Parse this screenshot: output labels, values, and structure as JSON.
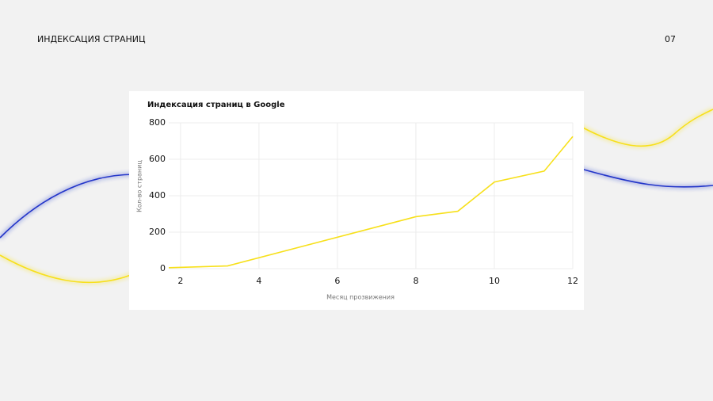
{
  "header": {
    "title": "ИНДЕКСАЦИЯ СТРАНИЦ",
    "page": "07"
  },
  "chart_data": {
    "type": "line",
    "title": "Индексация страниц в Google",
    "x_label": "Месяц прозвижения",
    "y_label": "Кол-во страниц",
    "x": [
      1.7,
      3.2,
      8,
      9.07,
      10,
      11.27,
      12
    ],
    "values": [
      5,
      15,
      285,
      315,
      475,
      535,
      725
    ],
    "color": "#f7e01b",
    "xlim": [
      1.7,
      12
    ],
    "xticks": [
      2,
      4,
      6,
      8,
      10,
      12
    ],
    "ylim": [
      0,
      800
    ],
    "yticks": [
      0,
      200,
      400,
      600,
      800
    ],
    "grid": true
  }
}
